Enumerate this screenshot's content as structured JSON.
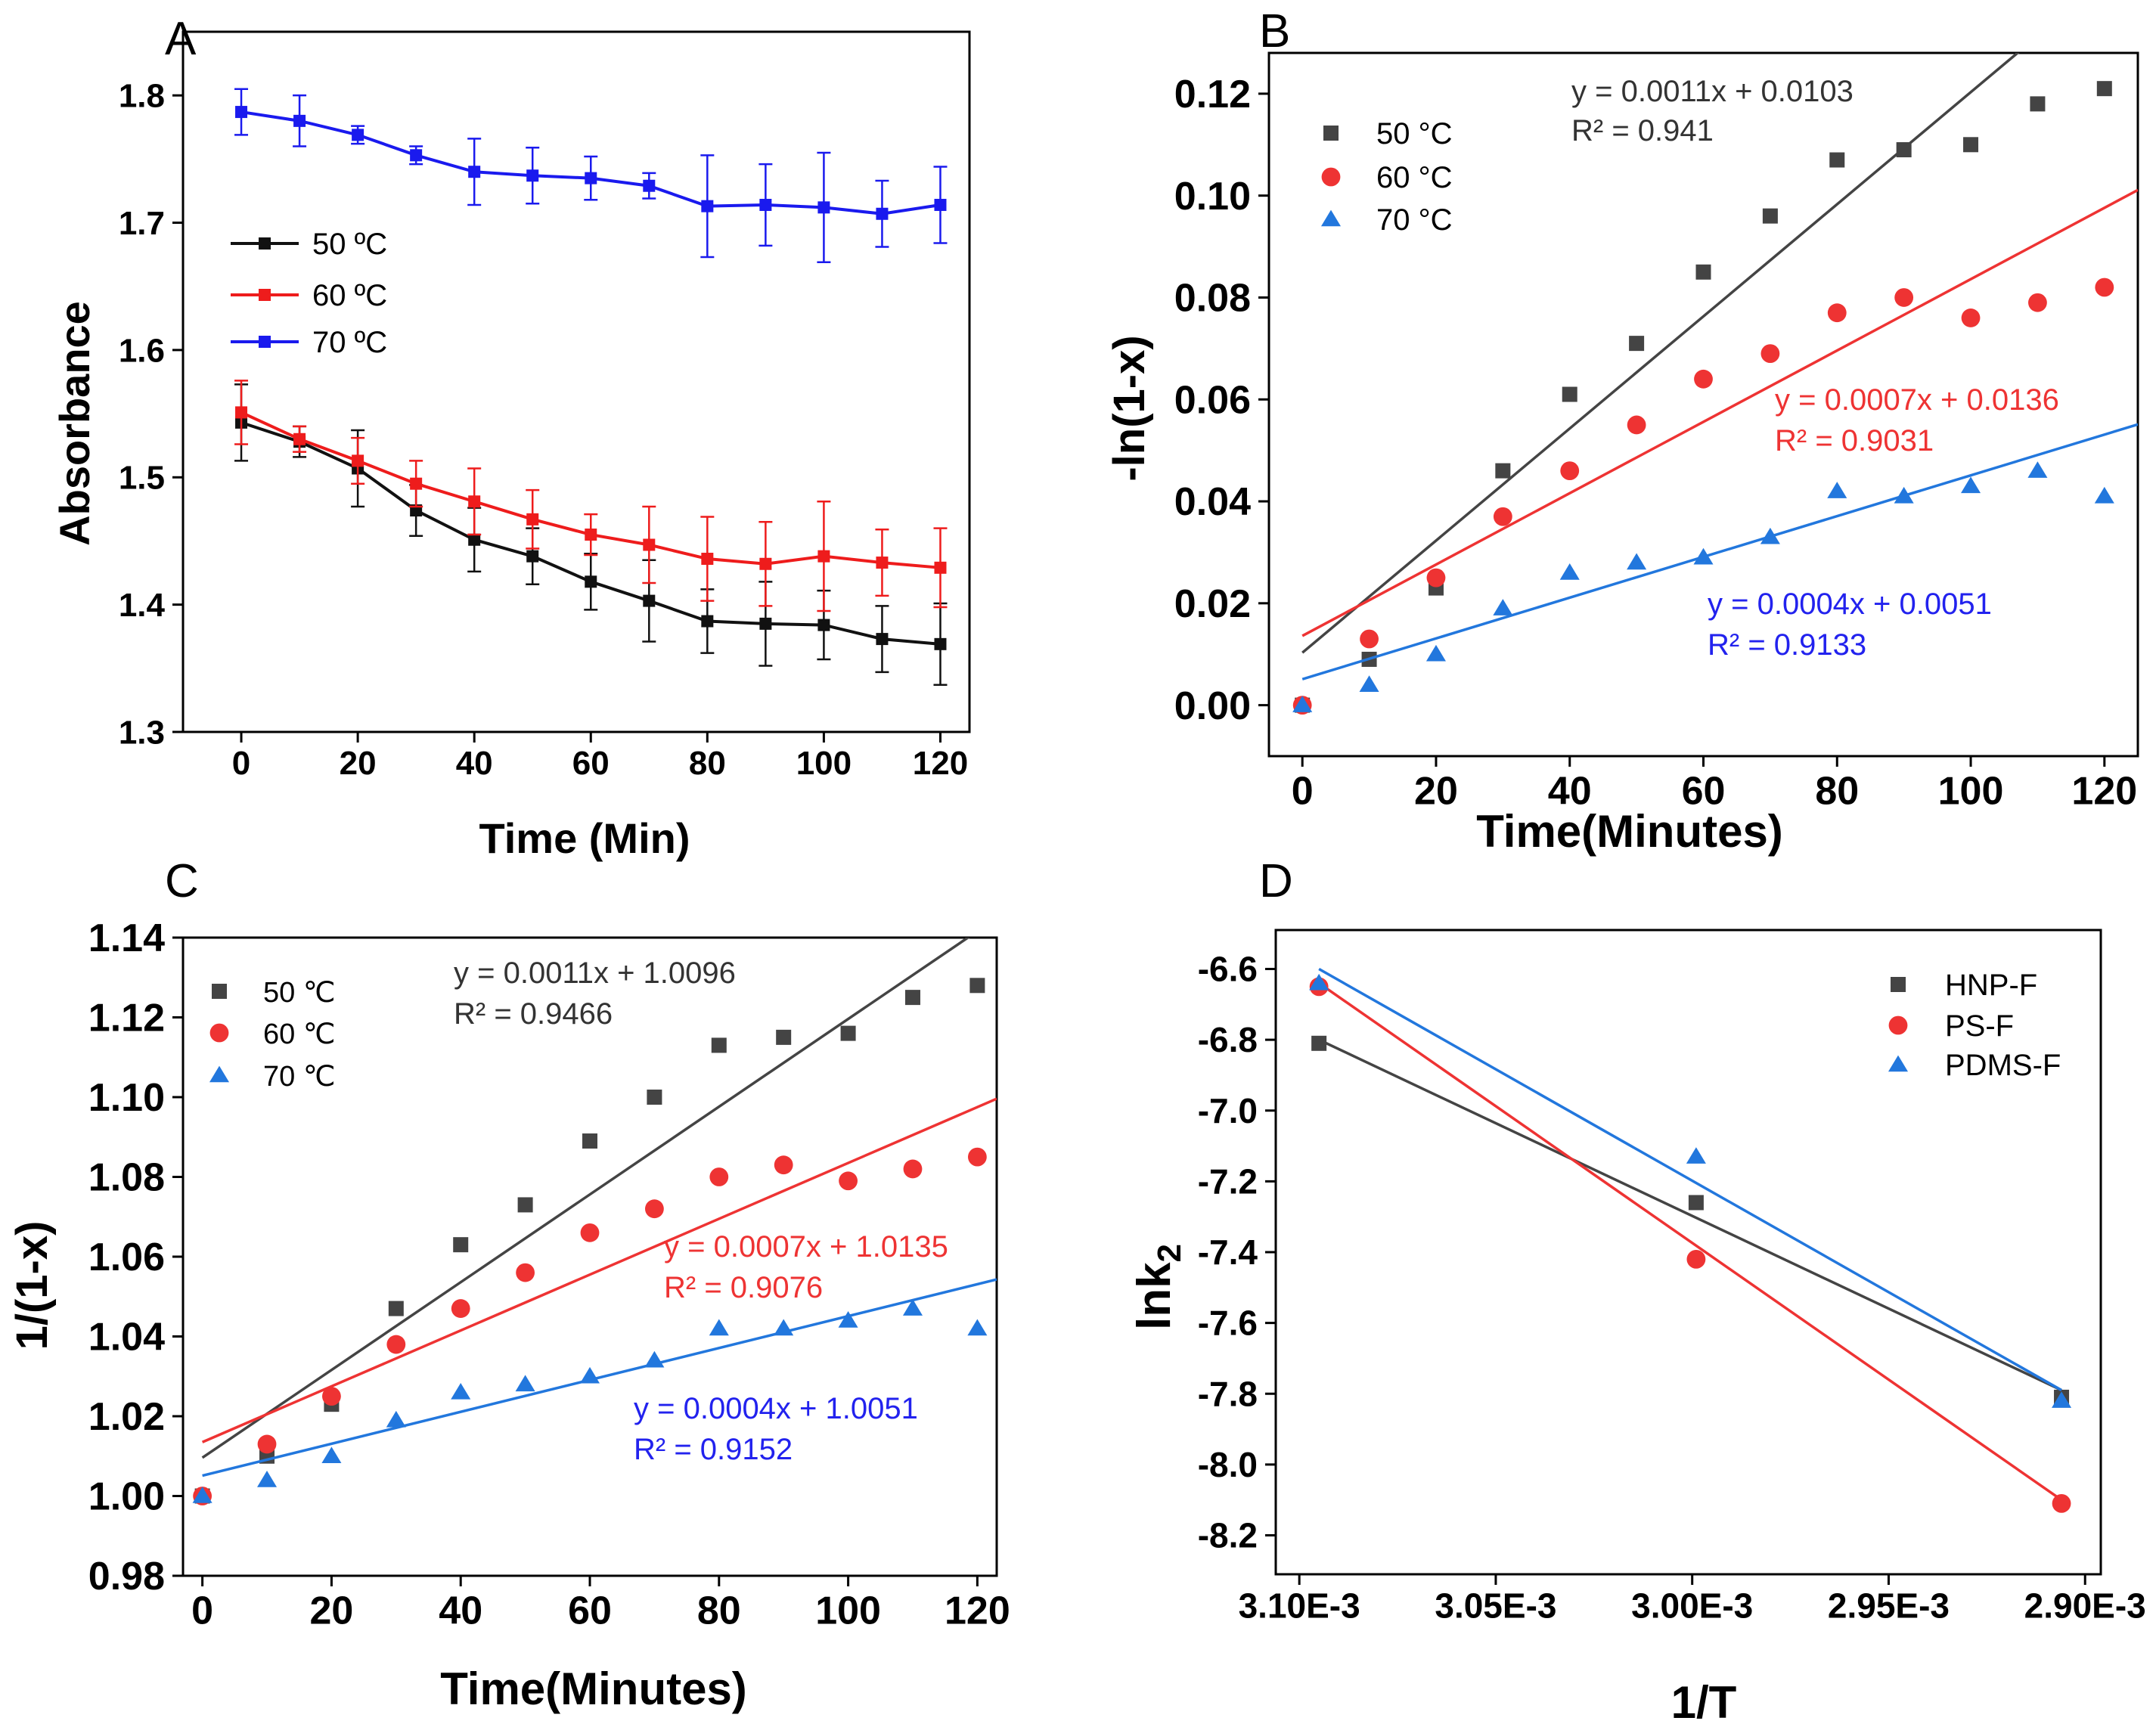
{
  "colors": {
    "black": "#111111",
    "gray": "#444444",
    "red": "#ee3333",
    "blue": "#2222ee",
    "lightblue": "#2277dd"
  },
  "chart_data": [
    {
      "id": "A",
      "panel_label": "A",
      "type": "line",
      "xlabel": "Time (Min)",
      "ylabel": "Absorbance",
      "xlim": [
        -10,
        125
      ],
      "ylim": [
        1.3,
        1.85
      ],
      "xticks": [
        0,
        20,
        40,
        60,
        80,
        100,
        120
      ],
      "yticks": [
        1.3,
        1.4,
        1.5,
        1.6,
        1.7,
        1.8
      ],
      "ytick_labels": [
        "1.3",
        "1.4",
        "1.5",
        "1.6",
        "1.7",
        "1.8"
      ],
      "x": [
        0,
        10,
        20,
        30,
        40,
        50,
        60,
        70,
        80,
        90,
        100,
        110,
        120
      ],
      "legend_pos": "left",
      "series": [
        {
          "name": "50 ºC",
          "color": "#111111",
          "values": [
            1.543,
            1.528,
            1.507,
            1.474,
            1.451,
            1.438,
            1.418,
            1.403,
            1.387,
            1.385,
            1.384,
            1.373,
            1.369
          ],
          "errors": [
            0.03,
            0.012,
            0.03,
            0.02,
            0.025,
            0.022,
            0.022,
            0.032,
            0.025,
            0.033,
            0.027,
            0.026,
            0.032
          ]
        },
        {
          "name": "60 ºC",
          "color": "#ee1c1c",
          "values": [
            1.551,
            1.53,
            1.513,
            1.495,
            1.481,
            1.467,
            1.455,
            1.447,
            1.436,
            1.432,
            1.438,
            1.433,
            1.429
          ],
          "errors": [
            0.025,
            0.01,
            0.018,
            0.018,
            0.026,
            0.023,
            0.016,
            0.03,
            0.033,
            0.033,
            0.043,
            0.026,
            0.031
          ]
        },
        {
          "name": "70 ºC",
          "color": "#1a1aee",
          "values": [
            1.787,
            1.78,
            1.769,
            1.753,
            1.74,
            1.737,
            1.735,
            1.729,
            1.713,
            1.714,
            1.712,
            1.707,
            1.714
          ],
          "errors": [
            0.018,
            0.02,
            0.007,
            0.007,
            0.026,
            0.022,
            0.017,
            0.01,
            0.04,
            0.032,
            0.043,
            0.026,
            0.03
          ]
        }
      ]
    },
    {
      "id": "B",
      "panel_label": "B",
      "type": "scatter",
      "xlabel": "Time(Minutes)",
      "ylabel": "-ln(1-x)",
      "xlim": [
        -5,
        125
      ],
      "ylim": [
        -0.01,
        0.128
      ],
      "xticks": [
        0,
        20,
        40,
        60,
        80,
        100,
        120
      ],
      "yticks": [
        0.0,
        0.02,
        0.04,
        0.06,
        0.08,
        0.1,
        0.12
      ],
      "ytick_labels": [
        "0.00",
        "0.02",
        "0.04",
        "0.06",
        "0.08",
        "0.10",
        "0.12"
      ],
      "x": [
        0,
        10,
        20,
        30,
        40,
        50,
        60,
        70,
        80,
        90,
        100,
        110,
        120
      ],
      "legend_pos": "top-left",
      "series": [
        {
          "name": "50 °C",
          "color": "#444444",
          "marker": "square",
          "values": [
            0.0,
            0.009,
            0.023,
            0.046,
            0.061,
            0.071,
            0.085,
            0.096,
            0.107,
            0.109,
            0.11,
            0.118,
            0.121
          ],
          "fit": {
            "slope": 0.0011,
            "intercept": 0.0103,
            "equation": "y = 0.0011x + 0.0103",
            "r2": "R² = 0.941"
          }
        },
        {
          "name": "60 °C",
          "color": "#ee3333",
          "marker": "circle",
          "values": [
            0.0,
            0.013,
            0.025,
            0.037,
            0.046,
            0.055,
            0.064,
            0.069,
            0.077,
            0.08,
            0.076,
            0.079,
            0.082
          ],
          "fit": {
            "slope": 0.0007,
            "intercept": 0.0136,
            "equation": "y = 0.0007x + 0.0136",
            "r2": "R² = 0.9031"
          }
        },
        {
          "name": "70 °C",
          "color": "#2277dd",
          "marker": "triangle",
          "values": [
            0.0,
            0.004,
            0.01,
            0.019,
            0.026,
            0.028,
            0.029,
            0.033,
            0.042,
            0.041,
            0.043,
            0.046,
            0.041
          ],
          "fit": {
            "slope": 0.0004,
            "intercept": 0.0051,
            "equation": "y = 0.0004x + 0.0051",
            "r2": "R² = 0.9133"
          }
        }
      ]
    },
    {
      "id": "C",
      "panel_label": "C",
      "type": "scatter",
      "xlabel": "Time(Minutes)",
      "ylabel": "1/(1-x)",
      "xlim": [
        -3,
        123
      ],
      "ylim": [
        0.98,
        1.14
      ],
      "xticks": [
        0,
        20,
        40,
        60,
        80,
        100,
        120
      ],
      "yticks": [
        0.98,
        1.0,
        1.02,
        1.04,
        1.06,
        1.08,
        1.1,
        1.12,
        1.14
      ],
      "ytick_labels": [
        "0.98",
        "1.00",
        "1.02",
        "1.04",
        "1.06",
        "1.08",
        "1.10",
        "1.12",
        "1.14"
      ],
      "x": [
        0,
        10,
        20,
        30,
        40,
        50,
        60,
        70,
        80,
        90,
        100,
        110,
        120
      ],
      "legend_pos": "top-left",
      "series": [
        {
          "name": "50 ℃",
          "color": "#444444",
          "marker": "square",
          "values": [
            1.0,
            1.01,
            1.023,
            1.047,
            1.063,
            1.073,
            1.089,
            1.1,
            1.113,
            1.115,
            1.116,
            1.125,
            1.128
          ],
          "fit": {
            "slope": 0.0011,
            "intercept": 1.0096,
            "equation": "y = 0.0011x + 1.0096",
            "r2": "R² = 0.9466"
          }
        },
        {
          "name": "60 ℃",
          "color": "#ee3333",
          "marker": "circle",
          "values": [
            1.0,
            1.013,
            1.025,
            1.038,
            1.047,
            1.056,
            1.066,
            1.072,
            1.08,
            1.083,
            1.079,
            1.082,
            1.085
          ],
          "fit": {
            "slope": 0.0007,
            "intercept": 1.0135,
            "equation": "y = 0.0007x + 1.0135",
            "r2": "R² = 0.9076"
          }
        },
        {
          "name": "70 ℃",
          "color": "#2277dd",
          "marker": "triangle",
          "values": [
            1.0,
            1.004,
            1.01,
            1.019,
            1.026,
            1.028,
            1.03,
            1.034,
            1.042,
            1.042,
            1.044,
            1.047,
            1.042
          ],
          "fit": {
            "slope": 0.0004,
            "intercept": 1.0051,
            "equation": "y = 0.0004x + 1.0051",
            "r2": "R² = 0.9152"
          }
        }
      ]
    },
    {
      "id": "D",
      "panel_label": "D",
      "type": "scatter",
      "xlabel": "1/T",
      "ylabel": "lnk",
      "ylabel_sub": "2",
      "xlim": [
        0.003106,
        0.002896
      ],
      "ylim": [
        -8.31,
        -6.49
      ],
      "xticks": [
        0.0031,
        0.00305,
        0.003,
        0.00295,
        0.0029
      ],
      "xtick_labels": [
        "3.10E-3",
        "3.05E-3",
        "3.00E-3",
        "2.95E-3",
        "2.90E-3"
      ],
      "yticks": [
        -8.2,
        -8.0,
        -7.8,
        -7.6,
        -7.4,
        -7.2,
        -7.0,
        -6.8,
        -6.6
      ],
      "ytick_labels": [
        "-8.2",
        "-8.0",
        "-7.8",
        "-7.6",
        "-7.4",
        "-7.2",
        "-7.0",
        "-6.8",
        "-6.6"
      ],
      "x": [
        0.003095,
        0.002999,
        0.002906
      ],
      "legend_pos": "top-right",
      "series": [
        {
          "name": "HNP-F",
          "color": "#444444",
          "marker": "square",
          "values": [
            -6.81,
            -7.26,
            -7.81
          ],
          "fit_points": [
            [
              0.003095,
              -6.8
            ],
            [
              0.002906,
              -7.79
            ]
          ]
        },
        {
          "name": "PS-F",
          "color": "#ee3333",
          "marker": "circle",
          "values": [
            -6.65,
            -7.42,
            -8.11
          ],
          "fit_points": [
            [
              0.003095,
              -6.64
            ],
            [
              0.002906,
              -8.1
            ]
          ]
        },
        {
          "name": "PDMS-F",
          "color": "#2277dd",
          "marker": "triangle",
          "values": [
            -6.64,
            -7.13,
            -7.82
          ],
          "fit_points": [
            [
              0.003095,
              -6.6
            ],
            [
              0.002906,
              -7.79
            ]
          ]
        }
      ]
    }
  ]
}
